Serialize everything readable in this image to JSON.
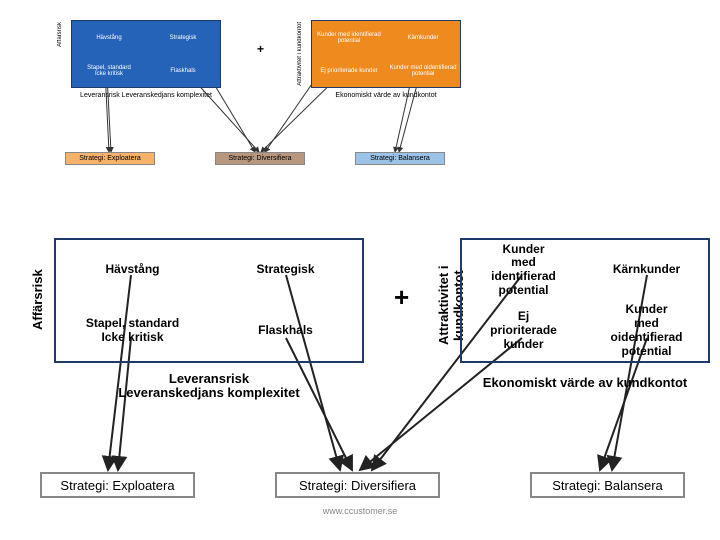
{
  "colors": {
    "blue": "#2563b8",
    "orange": "#ef8a1f",
    "darknavy": "#1f3a6a",
    "orange_box": "#f7b26a",
    "blue_box": "#9cc2e8",
    "maroon_box": "#b7987e",
    "gray_border": "#888888"
  },
  "mini": {
    "left_axis": "Affärsrisk",
    "right_axis": "Attraktivitet i kundkontot",
    "left_cells": {
      "tl": "Hävstång",
      "tr": "Strategisk",
      "bl": "Stapel, standard Icke kritisk",
      "br": "Flaskhals"
    },
    "right_cells": {
      "tl": "Kunder med identifierad potential",
      "tr": "Kärnkunder",
      "bl": "Ej prioriterade kunder",
      "br": "Kunder med oidentifierad potential"
    },
    "plus": "+",
    "left_caption": "Leveransrisk Leveranskedjans komplexitet",
    "right_caption": "Ekonomiskt värde av kundkontot",
    "strategies": {
      "a": "Strategi: Exploatera",
      "b": "Strategi: Diversifiera",
      "c": "Strategi: Balansera"
    }
  },
  "main": {
    "left_axis": "Affärsrisk",
    "right_axis": "Attraktivitet i kundkontot",
    "left_cells": {
      "tl": "Hävstång",
      "tr": "Strategisk",
      "bl": "Stapel, standard Icke kritisk",
      "br": "Flaskhals"
    },
    "right_cells": {
      "tl": "Kunder med identifierad potential",
      "tr": "Kärnkunder",
      "bl": "Ej prioriterade kunder",
      "br": "Kunder med oidentifierad potential"
    },
    "plus": "+",
    "left_caption": "Leveransrisk Leveranskedjans komplexitet",
    "right_caption": "Ekonomiskt värde av kundkontot",
    "strategies": {
      "a": "Strategi: Exploatera",
      "b": "Strategi: Diversifiera",
      "c": "Strategi: Balansera"
    }
  },
  "footer": "www.ccustomer.se"
}
